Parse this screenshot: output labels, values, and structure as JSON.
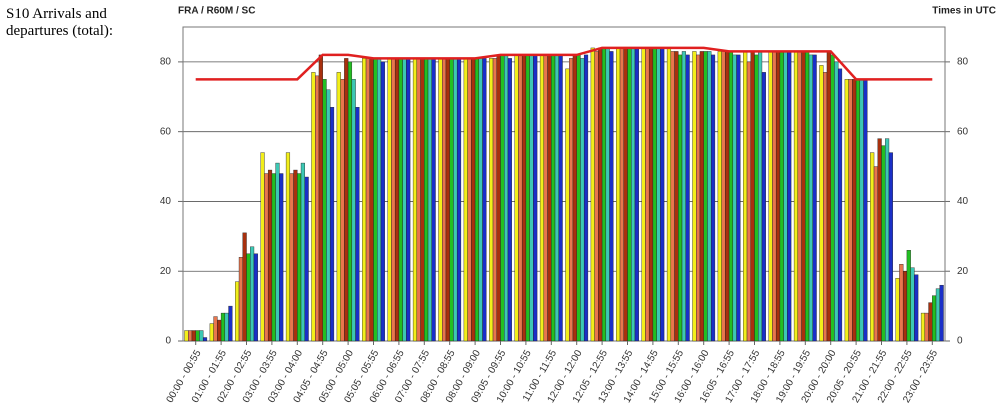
{
  "caption": "S10 Arrivals and departures (total):",
  "chart_data": {
    "type": "bar",
    "title": "FRA / R60M / SC",
    "subtitle": "Times in UTC",
    "categories": [
      "00:00 - 00:55",
      "01:00 - 01:55",
      "02:00 - 02:55",
      "03:00 - 03:55",
      "03:00 - 04:00",
      "04:05 - 04:55",
      "05:00 - 05:00",
      "05:05 - 05:55",
      "06:00 - 06:55",
      "07:00 - 07:55",
      "08:00 - 08:55",
      "08:00 - 09:00",
      "09:05 - 09:55",
      "10:00 - 10:55",
      "11:00 - 11:55",
      "12:00 - 12:00",
      "12:05 - 12:55",
      "13:00 - 13:55",
      "14:00 - 14:55",
      "15:00 - 15:55",
      "16:00 - 16:00",
      "16:05 - 16:55",
      "17:00 - 17:55",
      "18:00 - 18:55",
      "19:00 - 19:55",
      "20:00 - 20:00",
      "20:05 - 20:55",
      "21:00 - 21:55",
      "22:00 - 22:55",
      "23:00 - 23:55"
    ],
    "series": [
      {
        "type": "bar",
        "color": "#f2ee1a",
        "values": [
          3,
          5,
          17,
          54,
          54,
          77,
          77,
          81,
          81,
          81,
          81,
          81,
          81,
          82,
          82,
          78,
          84,
          84,
          84,
          84,
          83,
          83,
          83,
          83,
          83,
          79,
          75,
          54,
          18,
          8
        ]
      },
      {
        "type": "bar",
        "color": "#e8764e",
        "values": [
          3,
          7,
          24,
          48,
          48,
          76,
          75,
          81,
          81,
          81,
          81,
          81,
          81,
          82,
          82,
          81,
          83,
          84,
          84,
          83,
          82,
          83,
          80,
          83,
          83,
          77,
          75,
          50,
          22,
          8
        ]
      },
      {
        "type": "bar",
        "color": "#a8300e",
        "values": [
          3,
          6,
          31,
          49,
          49,
          82,
          81,
          81,
          81,
          81,
          81,
          81,
          82,
          82,
          82,
          82,
          84,
          84,
          84,
          83,
          83,
          83,
          83,
          83,
          83,
          83,
          75,
          58,
          20,
          11
        ]
      },
      {
        "type": "bar",
        "color": "#22bf22",
        "values": [
          3,
          8,
          25,
          48,
          48,
          75,
          80,
          81,
          81,
          81,
          81,
          81,
          82,
          82,
          82,
          82,
          84,
          84,
          84,
          82,
          83,
          83,
          82,
          83,
          83,
          82,
          75,
          56,
          26,
          13
        ]
      },
      {
        "type": "bar",
        "color": "#3cc8b4",
        "values": [
          3,
          8,
          27,
          51,
          51,
          72,
          75,
          81,
          81,
          81,
          81,
          81,
          82,
          82,
          82,
          81,
          84,
          84,
          84,
          83,
          83,
          82,
          83,
          83,
          82,
          80,
          75,
          58,
          21,
          15
        ]
      },
      {
        "type": "bar",
        "color": "#1a2fc8",
        "values": [
          1,
          10,
          25,
          48,
          47,
          67,
          67,
          80,
          81,
          81,
          81,
          81,
          81,
          82,
          82,
          82,
          83,
          84,
          84,
          82,
          82,
          82,
          77,
          83,
          82,
          78,
          75,
          54,
          19,
          16
        ]
      },
      {
        "type": "line",
        "color": "#e02020",
        "values": [
          75,
          75,
          75,
          75,
          75,
          82,
          82,
          81,
          81,
          81,
          81,
          81,
          82,
          82,
          82,
          82,
          84,
          84,
          84,
          84,
          84,
          83,
          83,
          83,
          83,
          83,
          75,
          75,
          75,
          75
        ]
      }
    ],
    "ylim": [
      0,
      90
    ],
    "yticks": [
      0,
      20,
      40,
      60,
      80
    ],
    "y2lim": [
      0,
      90
    ],
    "y2ticks": [
      0,
      20,
      40,
      60,
      80
    ],
    "grid": true
  }
}
